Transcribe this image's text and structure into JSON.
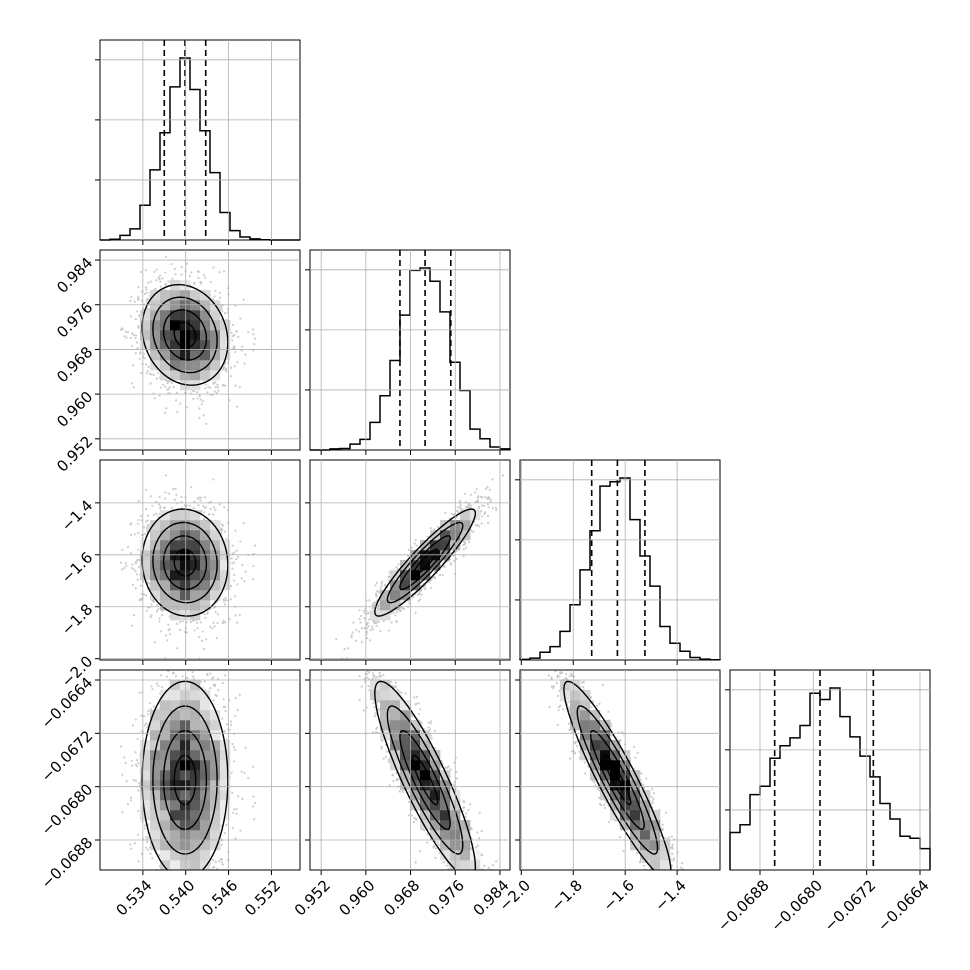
{
  "chart_data": {
    "type": "corner",
    "title": "",
    "parameters": [
      {
        "name": "",
        "range": [
          0.528,
          0.556
        ],
        "ticks": [
          0.534,
          0.54,
          0.546,
          0.552
        ],
        "tick_labels": [
          "0.534",
          "0.540",
          "0.546",
          "0.552"
        ],
        "quantiles": [
          0.537,
          0.5399,
          0.5428
        ],
        "mean": 0.5399,
        "sigma": 0.003
      },
      {
        "name": "",
        "range": [
          0.95,
          0.9858
        ],
        "ticks": [
          0.952,
          0.96,
          0.968,
          0.976,
          0.984
        ],
        "tick_labels": [
          "0.952",
          "0.960",
          "0.968",
          "0.976",
          "0.984"
        ],
        "quantiles": [
          0.9661,
          0.9706,
          0.9752
        ],
        "mean": 0.9706,
        "sigma": 0.0045
      },
      {
        "name": "",
        "range": [
          -2.005,
          -1.235
        ],
        "ticks": [
          -2.0,
          -1.8,
          -1.6,
          -1.4
        ],
        "tick_labels": [
          "−2.0",
          "−1.8",
          "−1.6",
          "−1.4"
        ],
        "quantiles": [
          -1.729,
          -1.63,
          -1.524
        ],
        "mean": -1.63,
        "sigma": 0.103
      },
      {
        "name": "",
        "range": [
          -0.06925,
          -0.06625
        ],
        "ticks": [
          -0.0688,
          -0.068,
          -0.0672,
          -0.0664
        ],
        "tick_labels": [
          "−0.0688",
          "−0.0680",
          "−0.0672",
          "−0.0664"
        ],
        "quantiles": [
          -0.06858,
          -0.0679,
          -0.0671
        ],
        "mean": -0.0679,
        "sigma": 0.00074
      }
    ],
    "correlations": [
      [
        1.0,
        -0.15,
        -0.05,
        0.0
      ],
      [
        -0.15,
        1.0,
        0.92,
        -0.88
      ],
      [
        -0.05,
        0.92,
        1.0,
        -0.92
      ],
      [
        0.0,
        -0.88,
        -0.92,
        1.0
      ]
    ],
    "histogram_bins": 20,
    "contour_levels_sigma": [
      0.5,
      1.0,
      1.5,
      2.0
    ],
    "grid": true,
    "style": {
      "line_color": "#000000",
      "scatter_color": "#bfbfbf",
      "grid_color": "#b0b0b0",
      "density_dark": "#000000",
      "density_light": "#ffffff"
    }
  }
}
